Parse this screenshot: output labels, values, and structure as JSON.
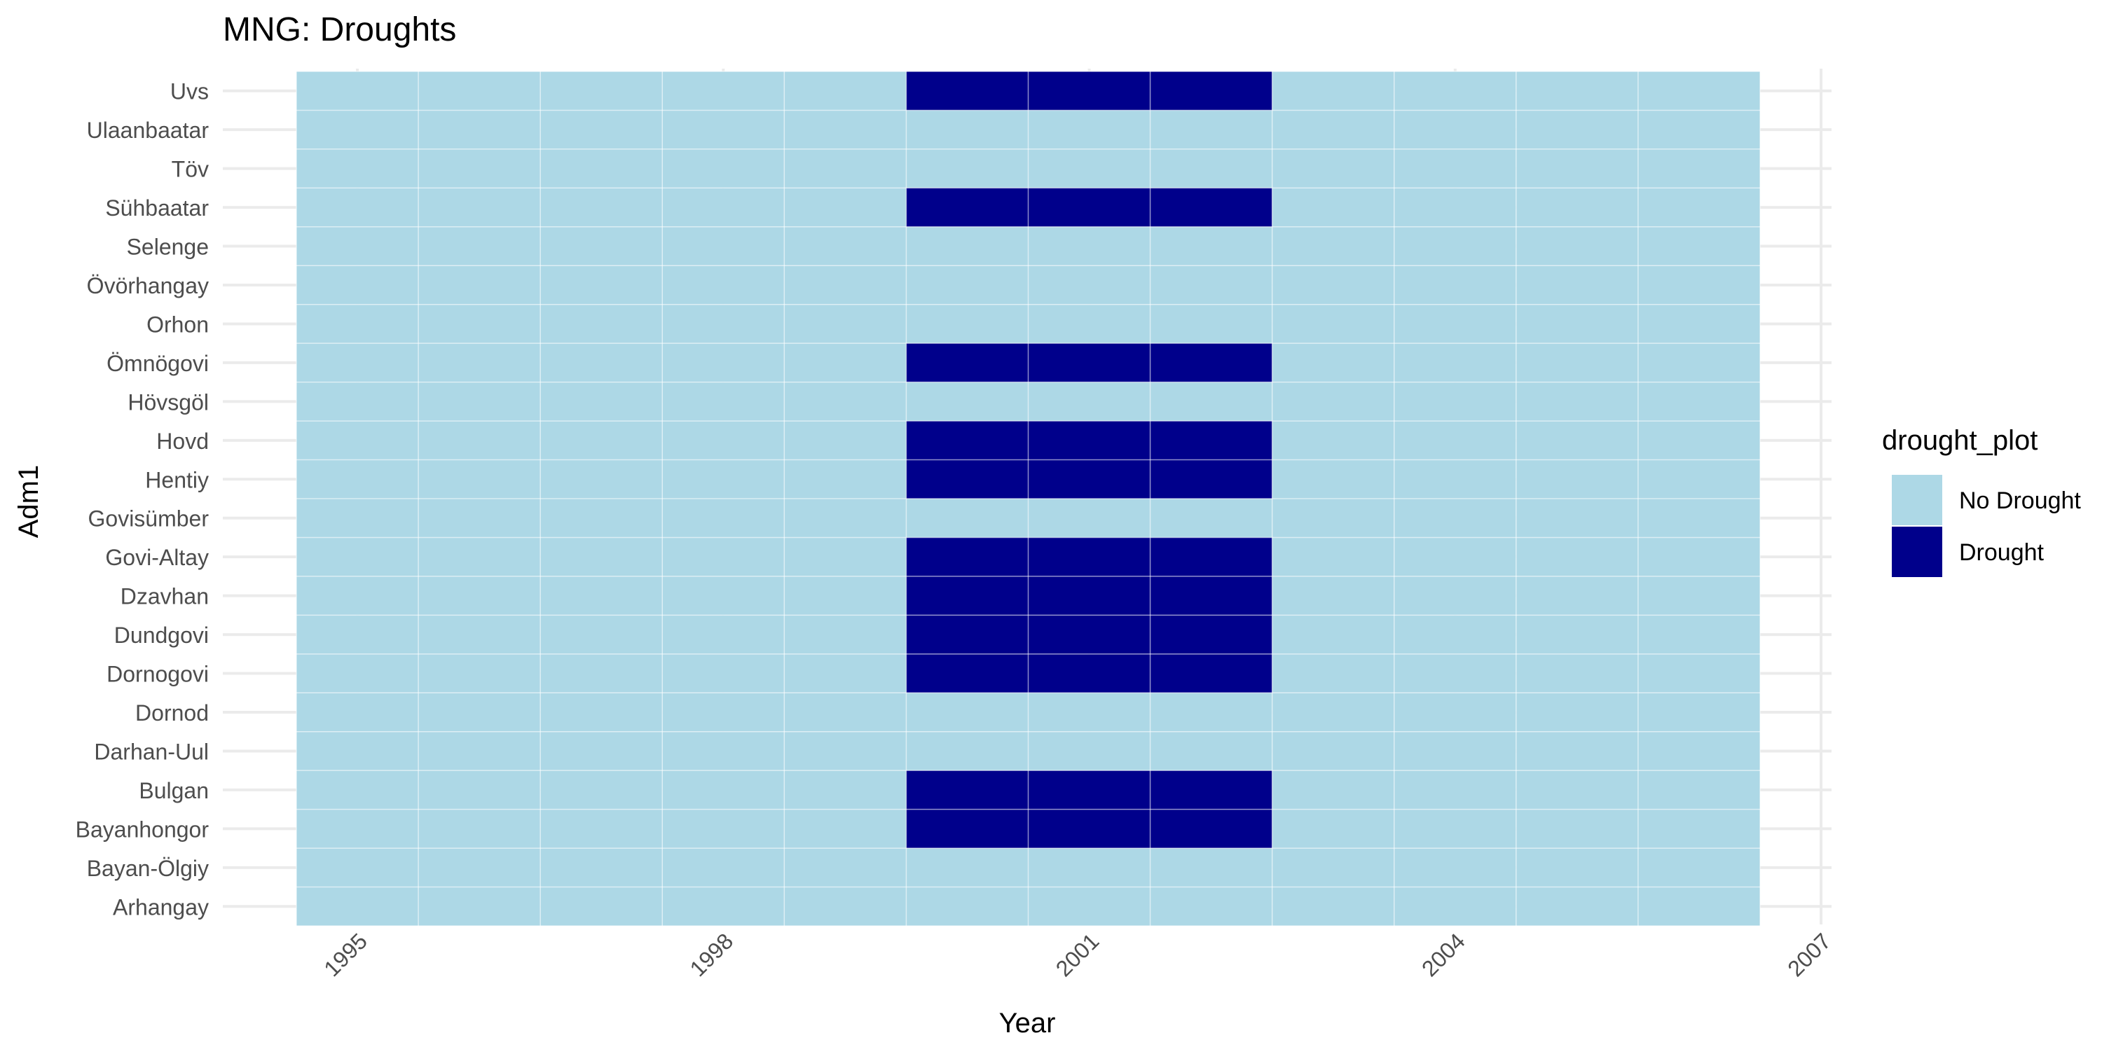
{
  "chart_data": {
    "type": "heatmap",
    "title": "MNG: Droughts",
    "xlabel": "Year",
    "ylabel": "Adm1",
    "x_ticks": [
      1995,
      1998,
      2001,
      2004,
      2007
    ],
    "xlim": [
      1994.5,
      2007
    ],
    "years": [
      1995,
      1996,
      1997,
      1998,
      1999,
      2000,
      2001,
      2002,
      2003,
      2004,
      2005,
      2006
    ],
    "regions": [
      "Uvs",
      "Ulaanbaatar",
      "Töv",
      "Sühbaatar",
      "Selenge",
      "Övörhangay",
      "Orhon",
      "Ömnögovi",
      "Hövsgöl",
      "Hovd",
      "Hentiy",
      "Govisümber",
      "Govi-Altay",
      "Dzavhan",
      "Dundgovi",
      "Dornogovi",
      "Dornod",
      "Darhan-Uul",
      "Bulgan",
      "Bayanhongor",
      "Bayan-Ölgiy",
      "Arhangay"
    ],
    "drought_years": [
      2000,
      2001,
      2002
    ],
    "drought_regions": [
      "Uvs",
      "Sühbaatar",
      "Ömnögovi",
      "Hovd",
      "Hentiy",
      "Govi-Altay",
      "Dzavhan",
      "Dundgovi",
      "Dornogovi",
      "Bulgan",
      "Bayanhongor"
    ],
    "legend": {
      "title": "drought_plot",
      "placement": "right",
      "entries": [
        {
          "label": "No Drought",
          "color": "#add8e6"
        },
        {
          "label": "Drought",
          "color": "#00008b"
        }
      ]
    },
    "grid": true
  }
}
